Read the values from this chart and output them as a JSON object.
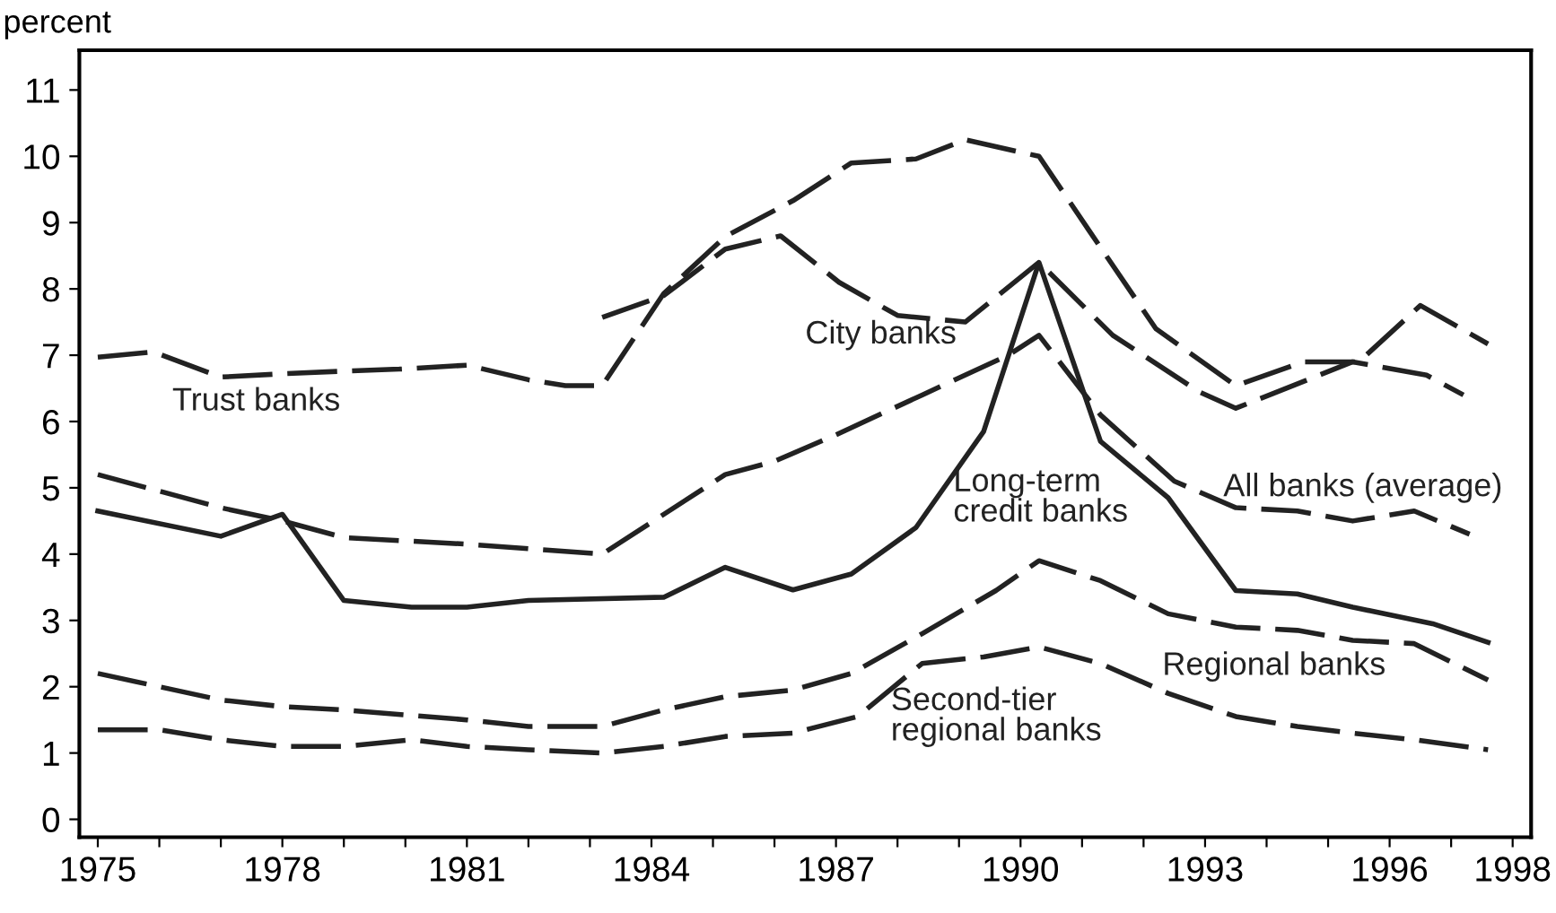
{
  "chart_data": {
    "type": "line",
    "ylabel": "percent",
    "xlim": [
      1974.7,
      1998.3
    ],
    "ylim": [
      -0.27,
      11.6
    ],
    "xticks": [
      {
        "value": 1975,
        "label": "1975"
      },
      {
        "value": 1976,
        "label": null
      },
      {
        "value": 1977,
        "label": null
      },
      {
        "value": 1978,
        "label": "1978"
      },
      {
        "value": 1979,
        "label": null
      },
      {
        "value": 1980,
        "label": null
      },
      {
        "value": 1981,
        "label": "1981"
      },
      {
        "value": 1982,
        "label": null
      },
      {
        "value": 1983,
        "label": null
      },
      {
        "value": 1984,
        "label": "1984"
      },
      {
        "value": 1985,
        "label": null
      },
      {
        "value": 1986,
        "label": null
      },
      {
        "value": 1987,
        "label": "1987"
      },
      {
        "value": 1988,
        "label": null
      },
      {
        "value": 1989,
        "label": null
      },
      {
        "value": 1990,
        "label": "1990"
      },
      {
        "value": 1991,
        "label": null
      },
      {
        "value": 1992,
        "label": null
      },
      {
        "value": 1993,
        "label": "1993"
      },
      {
        "value": 1994,
        "label": null
      },
      {
        "value": 1995,
        "label": null
      },
      {
        "value": 1996,
        "label": "1996"
      },
      {
        "value": 1997,
        "label": null
      },
      {
        "value": 1998,
        "label": "1998"
      }
    ],
    "yticks": [
      0,
      1,
      2,
      3,
      4,
      5,
      6,
      7,
      8,
      9,
      10,
      11
    ],
    "grid": false,
    "legend": false,
    "marker": "none",
    "series": [
      {
        "name": "Trust banks",
        "color": "#222222",
        "line_style": "dashed",
        "x": [
          1975,
          1975.9,
          1977,
          1978,
          1979,
          1979.9,
          1981,
          1982,
          1982.6,
          1983.2,
          1984.2,
          1985.2,
          1986.3,
          1987.25,
          1988.3,
          1989.1,
          1990.3,
          1991.1,
          1992.2,
          1993.5,
          1994.6,
          1995.5,
          1996.5,
          1997.6
        ],
        "values": [
          6.97,
          7.05,
          6.67,
          6.72,
          6.76,
          6.79,
          6.85,
          6.63,
          6.54,
          6.54,
          7.93,
          8.79,
          9.33,
          9.9,
          9.96,
          10.25,
          10.0,
          8.9,
          7.4,
          6.54,
          6.9,
          6.9,
          7.75,
          7.17
        ]
      },
      {
        "name": "City banks",
        "color": "#222222",
        "line_style": "dashed",
        "x": [
          1983.2,
          1984.2,
          1985.2,
          1986.1,
          1987.05,
          1988.0,
          1989.1,
          1990.3,
          1991.5,
          1992.9,
          1993.5,
          1995.4,
          1996.6,
          1997.2
        ],
        "values": [
          7.57,
          7.9,
          8.6,
          8.8,
          8.1,
          7.6,
          7.5,
          8.4,
          7.3,
          6.45,
          6.2,
          6.9,
          6.7,
          6.4
        ]
      },
      {
        "name": "All banks (average)",
        "color": "#222222",
        "line_style": "dashed",
        "x": [
          1975,
          1977,
          1978,
          1979,
          1981,
          1983.2,
          1984.2,
          1985.2,
          1986.0,
          1987.0,
          1988.4,
          1989.8,
          1990.3,
          1991.3,
          1992.5,
          1993.5,
          1994.5,
          1995.4,
          1996.4,
          1997.3
        ],
        "values": [
          5.2,
          4.7,
          4.5,
          4.25,
          4.15,
          4.0,
          4.6,
          5.2,
          5.4,
          5.8,
          6.4,
          7.0,
          7.3,
          6.1,
          5.1,
          4.7,
          4.65,
          4.5,
          4.65,
          4.3
        ]
      },
      {
        "name": "Long-term\ncredit banks",
        "color": "#222222",
        "line_style": "solid",
        "x": [
          1975,
          1977,
          1978,
          1979,
          1980.1,
          1981,
          1982,
          1984.2,
          1985.2,
          1986.3,
          1987.25,
          1988.3,
          1989.4,
          1990.3,
          1991.3,
          1992.4,
          1993.5,
          1994.5,
          1995.4,
          1996.7,
          1997.6
        ],
        "values": [
          4.65,
          4.27,
          4.6,
          3.3,
          3.2,
          3.2,
          3.3,
          3.35,
          3.8,
          3.46,
          3.7,
          4.4,
          5.85,
          8.4,
          5.7,
          4.85,
          3.45,
          3.4,
          3.2,
          2.95,
          2.67
        ]
      },
      {
        "name": "Regional banks",
        "color": "#222222",
        "line_style": "dashed",
        "x": [
          1975,
          1977,
          1978,
          1979,
          1981,
          1982,
          1983.2,
          1984.2,
          1985.2,
          1986.3,
          1987.25,
          1988.4,
          1989.6,
          1990.3,
          1991.3,
          1992.4,
          1993.5,
          1994.5,
          1995.4,
          1996.4,
          1997.6
        ],
        "values": [
          2.2,
          1.8,
          1.7,
          1.65,
          1.5,
          1.4,
          1.4,
          1.65,
          1.85,
          1.95,
          2.2,
          2.8,
          3.45,
          3.9,
          3.6,
          3.1,
          2.9,
          2.85,
          2.7,
          2.65,
          2.1
        ]
      },
      {
        "name": "Second-tier\nregional banks",
        "color": "#222222",
        "line_style": "dashed",
        "x": [
          1975,
          1976,
          1977,
          1978,
          1979,
          1980.1,
          1981,
          1982,
          1983.2,
          1984.2,
          1985.2,
          1986.3,
          1987.35,
          1988.4,
          1989.4,
          1990.3,
          1991.3,
          1992.4,
          1993.5,
          1994.5,
          1995.4,
          1996.4,
          1997.6
        ],
        "values": [
          1.35,
          1.35,
          1.2,
          1.1,
          1.1,
          1.2,
          1.1,
          1.05,
          1.0,
          1.1,
          1.25,
          1.3,
          1.55,
          2.35,
          2.45,
          2.6,
          2.35,
          1.9,
          1.55,
          1.4,
          1.3,
          1.2,
          1.05
        ]
      }
    ]
  }
}
